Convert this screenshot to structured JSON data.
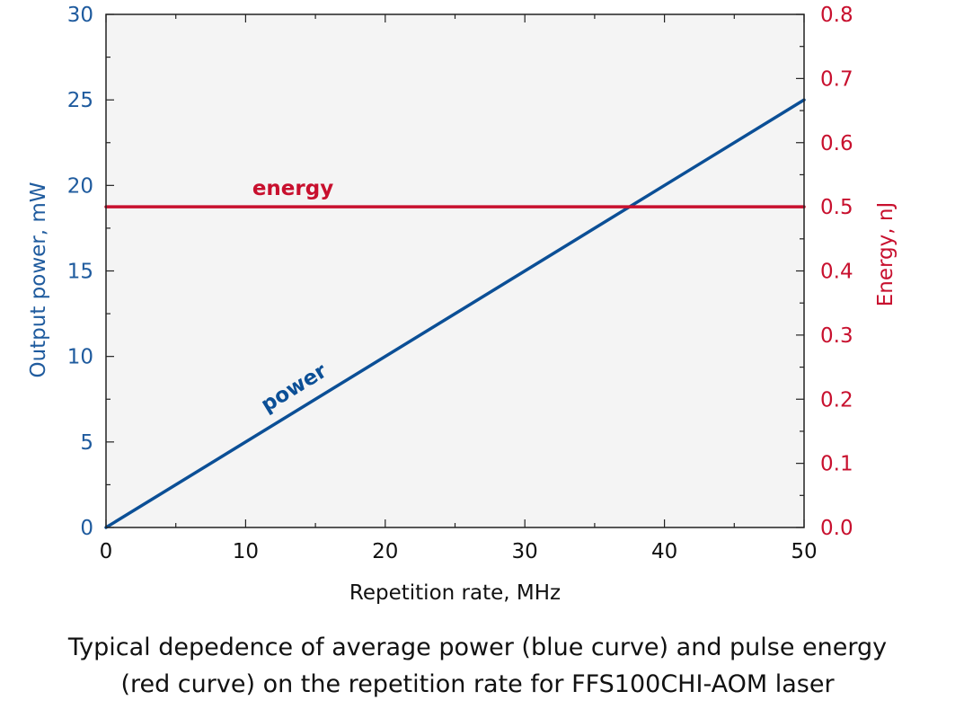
{
  "chart_data": {
    "type": "line",
    "xlabel": "Repetition rate, MHz",
    "ylabel": "Output power, mW",
    "y2label": "Energy, nJ",
    "xlim": [
      0,
      50
    ],
    "ylim": [
      0,
      30
    ],
    "y2lim": [
      0,
      0.8
    ],
    "xticks": [
      "0",
      "10",
      "20",
      "30",
      "40",
      "50"
    ],
    "yticks": [
      "0",
      "5",
      "10",
      "15",
      "20",
      "25",
      "30"
    ],
    "y2ticks": [
      "0.0",
      "0.1",
      "0.2",
      "0.3",
      "0.4",
      "0.5",
      "0.6",
      "0.7",
      "0.8"
    ],
    "grid": false,
    "colors": {
      "left_axis": "#1f5b9e",
      "right_axis": "#c8102e",
      "plot_background": "#f4f4f4"
    },
    "series": [
      {
        "name": "power",
        "axis": "left",
        "color": "#0b4f96",
        "x": [
          0,
          50
        ],
        "y": [
          0,
          25
        ]
      },
      {
        "name": "energy",
        "axis": "right",
        "color": "#c8102e",
        "x": [
          0,
          50
        ],
        "y": [
          0.5,
          0.5
        ]
      }
    ]
  },
  "caption": {
    "line1": "Typical depedence of average power (blue curve) and pulse energy",
    "line2": "(red curve) on the repetition rate for FFS100CHI-AOM laser"
  }
}
